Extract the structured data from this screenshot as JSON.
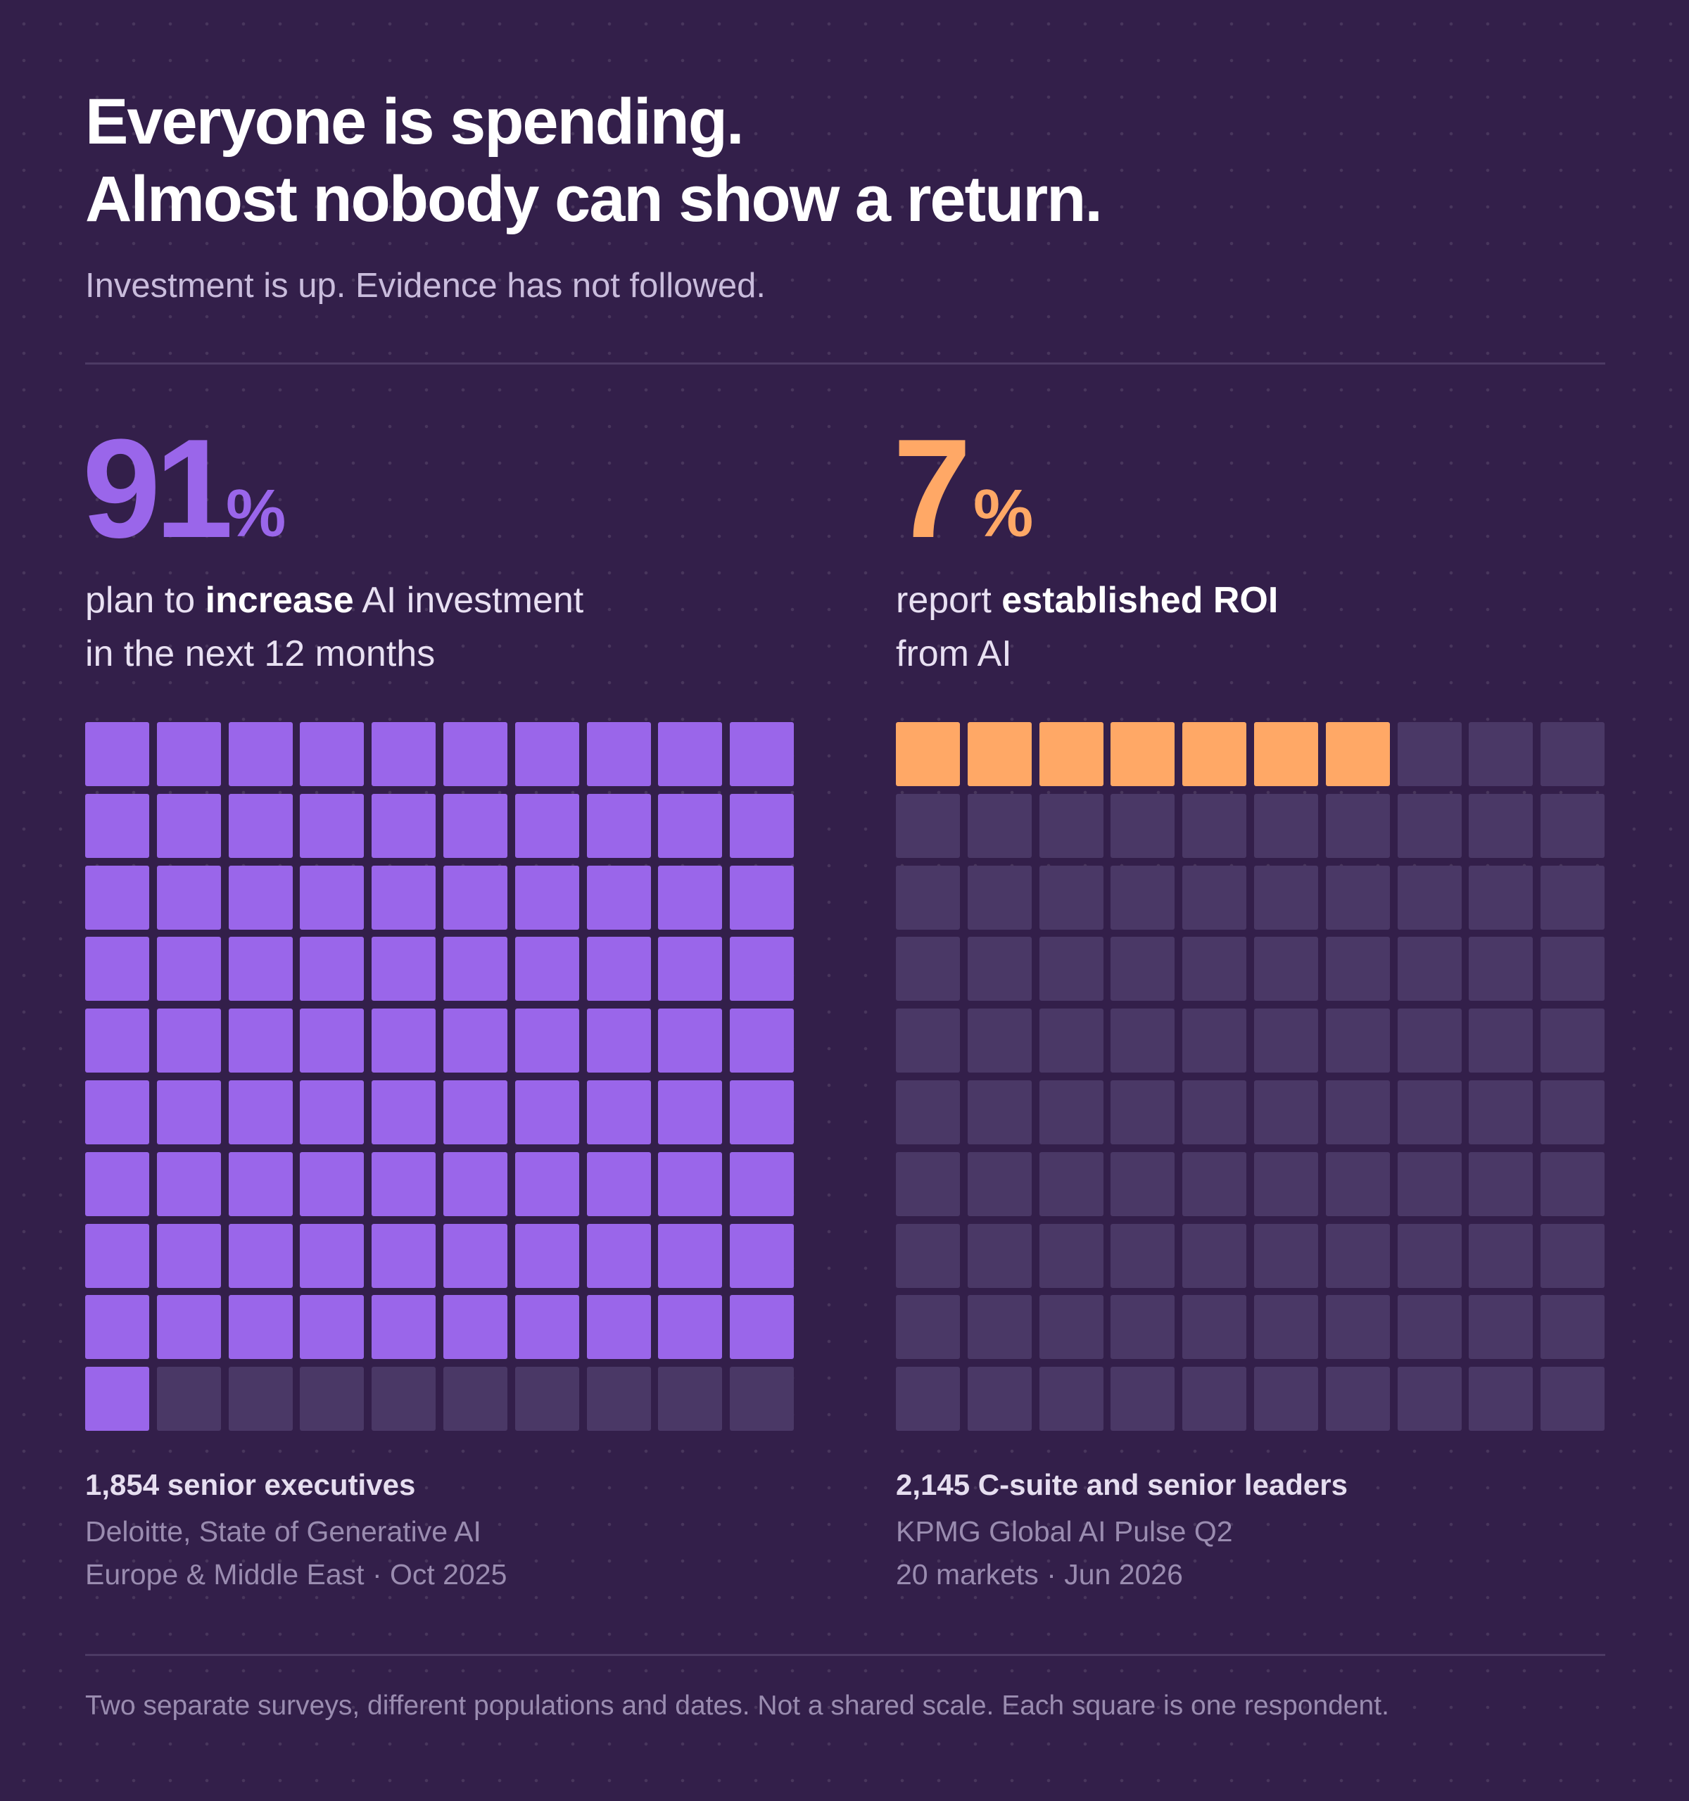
{
  "title": {
    "line1": "Everyone is spending.",
    "line2": "Almost nobody can show a return."
  },
  "subtitle": "Investment is up. Evidence has not followed.",
  "footnote": "Two separate surveys, different populations and dates. Not a shared scale. Each square is one respondent.",
  "colors": {
    "background": "#331f4a",
    "purple": "#9a66ea",
    "orange": "#ffa866",
    "empty": "#4a3866"
  },
  "chart_data": [
    {
      "type": "waffle",
      "value": 91,
      "value_text": "91",
      "unit": "%",
      "grid": [
        10,
        10
      ],
      "filled": 91,
      "color": "#9a66ea",
      "label": {
        "pre": "plan to ",
        "bold": "increase",
        "post": " AI investment",
        "line2": "in the next 12 months"
      },
      "sample": "1,854 senior executives",
      "source_line1": "Deloitte, State of Generative AI",
      "source_line2": "Europe & Middle East · Oct 2025"
    },
    {
      "type": "waffle",
      "value": 7,
      "value_text": "7",
      "unit": "%",
      "grid": [
        10,
        10
      ],
      "filled": 7,
      "color": "#ffa866",
      "label": {
        "pre": "report ",
        "bold": "established ROI",
        "post": "",
        "line2": "from AI"
      },
      "sample": "2,145 C-suite and senior leaders",
      "source_line1": "KPMG Global AI Pulse Q2",
      "source_line2": "20 markets · Jun 2026"
    }
  ]
}
